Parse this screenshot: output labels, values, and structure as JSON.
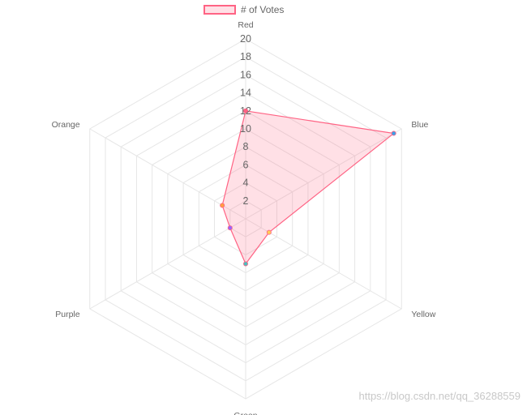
{
  "chart_data": {
    "type": "radar",
    "labels": [
      "Red",
      "Blue",
      "Yellow",
      "Green",
      "Purple",
      "Orange"
    ],
    "series": [
      {
        "name": "# of Votes",
        "values": [
          12,
          19,
          3,
          5,
          2,
          3
        ]
      }
    ],
    "rlim": [
      0,
      20
    ],
    "ticks": [
      "2",
      "4",
      "6",
      "8",
      "10",
      "12",
      "14",
      "16",
      "18",
      "20"
    ],
    "legend": "top",
    "grid": true,
    "colors": {
      "line": "#ff6384",
      "fill": "rgba(255,99,132,0.2)",
      "grid": "#e6e6e6",
      "label": "#666666",
      "points": [
        "#ff6384",
        "#36a2eb",
        "#ffce56",
        "#4bc0c0",
        "#9966ff",
        "#ff9f40"
      ]
    }
  },
  "watermark": "https://blog.csdn.net/qq_36288559"
}
